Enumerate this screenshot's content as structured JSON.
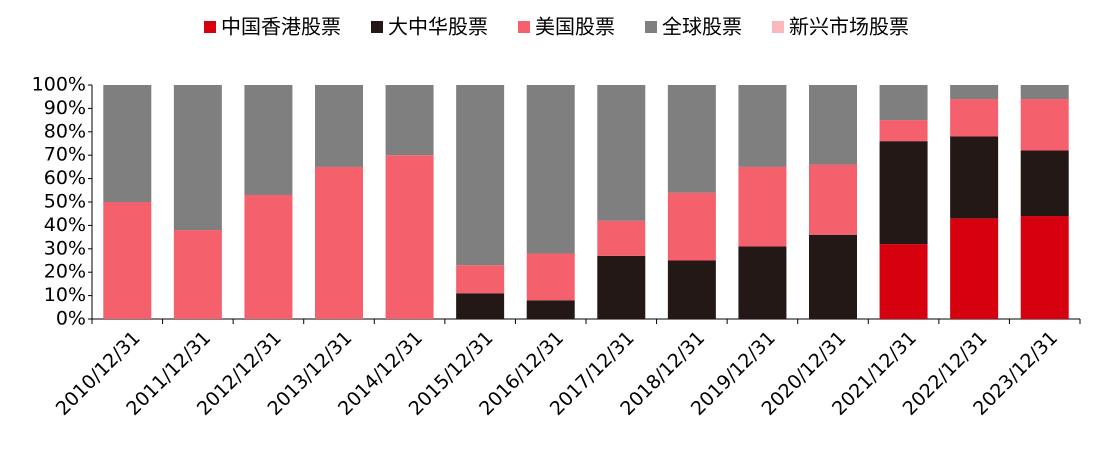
{
  "chart_data": {
    "type": "bar",
    "stacked": true,
    "categories": [
      "2010/12/31",
      "2011/12/31",
      "2012/12/31",
      "2013/12/31",
      "2014/12/31",
      "2015/12/31",
      "2016/12/31",
      "2017/12/31",
      "2018/12/31",
      "2019/12/31",
      "2020/12/31",
      "2021/12/31",
      "2022/12/31",
      "2023/12/31"
    ],
    "series": [
      {
        "name": "中国香港股票",
        "color": "#d7000f",
        "values": [
          0,
          0,
          0,
          0,
          0,
          0,
          0,
          0,
          0,
          0,
          0,
          32,
          43,
          44
        ]
      },
      {
        "name": "大中华股票",
        "color": "#231815",
        "values": [
          0,
          0,
          0,
          0,
          0,
          11,
          8,
          27,
          25,
          31,
          36,
          44,
          35,
          28
        ]
      },
      {
        "name": "美国股票",
        "color": "#f4606c",
        "values": [
          50,
          38,
          53,
          65,
          70,
          12,
          20,
          15,
          29,
          34,
          30,
          9,
          16,
          22
        ]
      },
      {
        "name": "全球股票",
        "color": "#7f7f7f",
        "values": [
          50,
          62,
          47,
          35,
          30,
          77,
          72,
          58,
          46,
          35,
          34,
          15,
          6,
          6
        ]
      },
      {
        "name": "新兴市场股票",
        "color": "#f9b8bc",
        "values": [
          0,
          0,
          0,
          0,
          0,
          0,
          0,
          0,
          0,
          0,
          0,
          0,
          0,
          0
        ]
      }
    ],
    "ylim": [
      0,
      100
    ],
    "yticks": [
      {
        "value": 0,
        "label": "0%"
      },
      {
        "value": 10,
        "label": "10%"
      },
      {
        "value": 20,
        "label": "20%"
      },
      {
        "value": 30,
        "label": "30%"
      },
      {
        "value": 40,
        "label": "40%"
      },
      {
        "value": 50,
        "label": "50%"
      },
      {
        "value": 60,
        "label": "60%"
      },
      {
        "value": 70,
        "label": "70%"
      },
      {
        "value": 80,
        "label": "80%"
      },
      {
        "value": 90,
        "label": "90%"
      },
      {
        "value": 100,
        "label": "100%"
      }
    ],
    "legend": "top"
  }
}
